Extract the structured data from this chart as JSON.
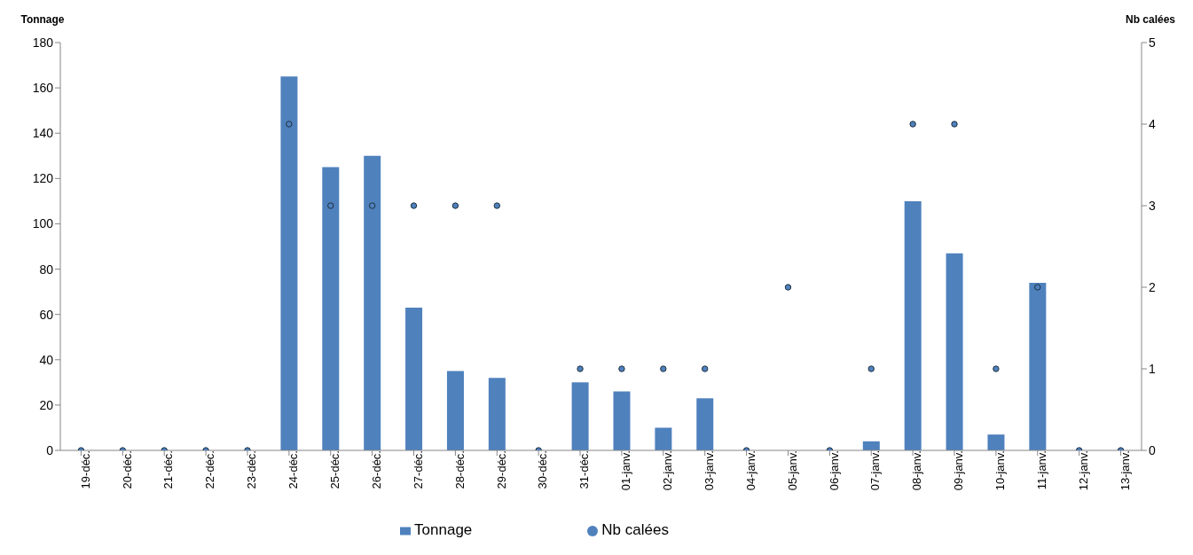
{
  "chart_data": {
    "type": "bar",
    "ylabel": "Tonnage",
    "y2label": "Nb calées",
    "categories": [
      "19-déc.",
      "20-déc.",
      "21-déc.",
      "22-déc.",
      "23-déc.",
      "24-déc.",
      "25-déc.",
      "26-déc.",
      "27-déc.",
      "28-déc.",
      "29-déc.",
      "30-déc.",
      "31-déc.",
      "01-janv.",
      "02-janv.",
      "03-janv.",
      "04-janv.",
      "05-janv.",
      "06-janv.",
      "07-janv.",
      "08-janv.",
      "09-janv.",
      "10-janv.",
      "11-janv.",
      "12-janv.",
      "13-janv."
    ],
    "series": [
      {
        "name": "Tonnage",
        "color": "#4f81bd",
        "values": [
          0,
          0,
          0,
          0,
          0,
          165,
          125,
          130,
          63,
          35,
          32,
          0,
          30,
          26,
          10,
          23,
          0,
          0,
          0,
          4,
          110,
          87,
          7,
          74,
          0,
          0
        ]
      },
      {
        "name": "Nb calées",
        "type": "scatter",
        "axis": "y2",
        "color": "#4f81bd",
        "marker": "circle",
        "values": [
          0,
          0,
          0,
          0,
          0,
          4,
          3,
          3,
          3,
          3,
          3,
          0,
          1,
          1,
          1,
          1,
          0,
          2,
          0,
          1,
          4,
          4,
          1,
          2,
          0,
          0
        ]
      }
    ],
    "ylim": [
      0,
      180
    ],
    "yticks": [
      0,
      20,
      40,
      60,
      80,
      100,
      120,
      140,
      160,
      180
    ],
    "y2lim": [
      0,
      5
    ],
    "y2ticks": [
      0,
      1,
      2,
      3,
      4,
      5
    ],
    "grid": false,
    "legend": "bottom"
  }
}
